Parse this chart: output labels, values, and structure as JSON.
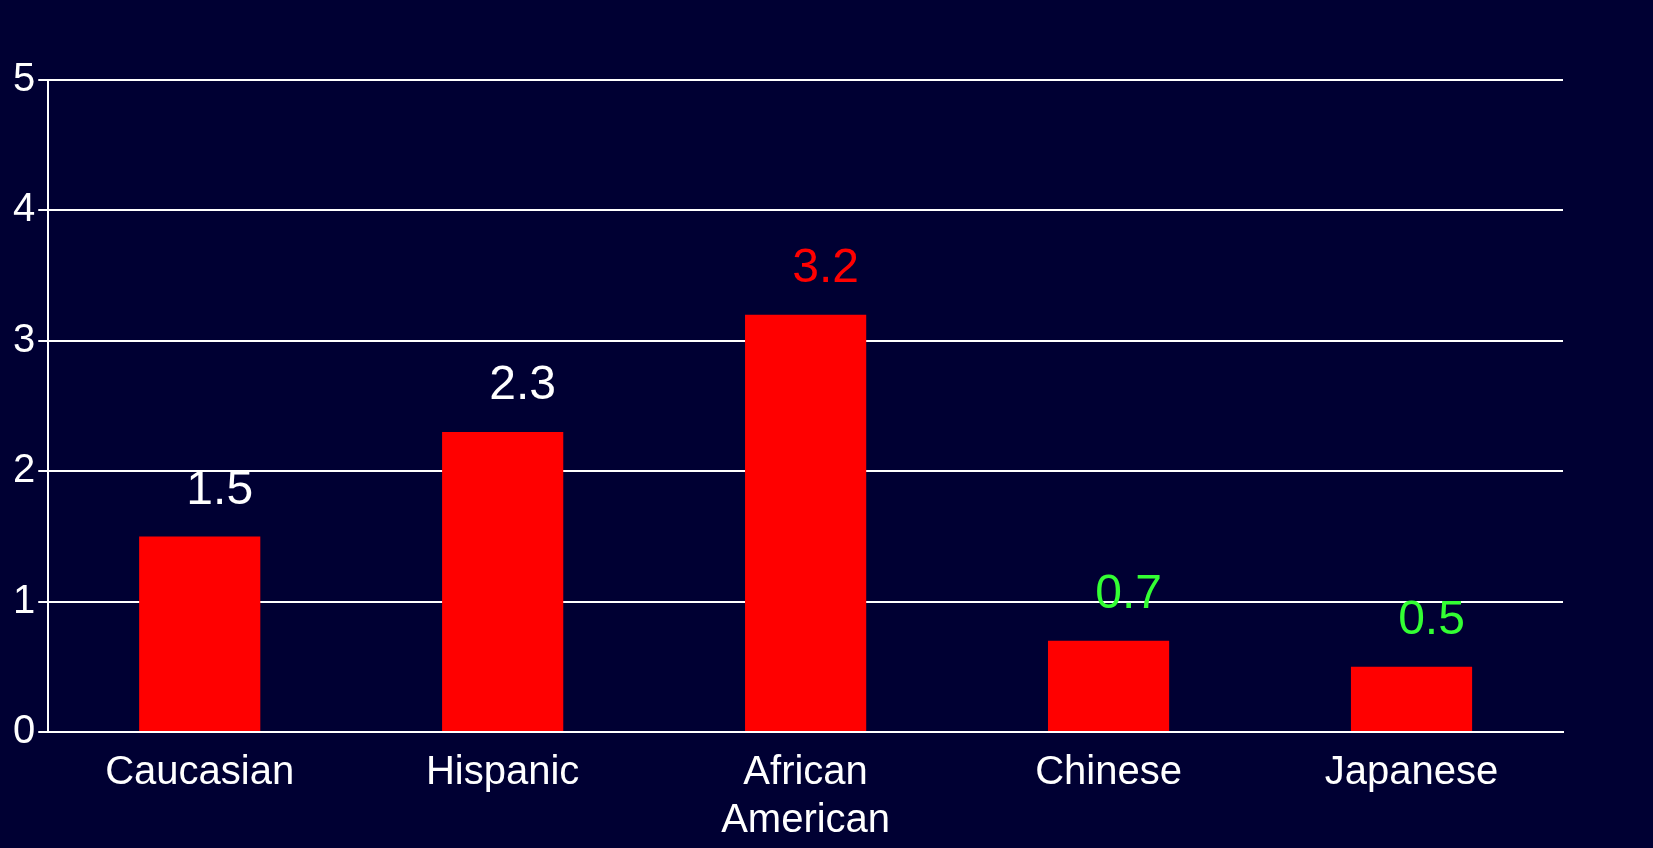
{
  "chart_data": {
    "type": "bar",
    "categories": [
      "Caucasian",
      "Hispanic",
      "African American",
      "Chinese",
      "Japanese"
    ],
    "values": [
      1.5,
      2.3,
      3.2,
      0.7,
      0.5
    ],
    "color": "#ff0000",
    "ylim": [
      0,
      5
    ],
    "yticks": [
      0,
      1,
      2,
      3,
      4,
      5
    ],
    "grid": "y",
    "data_labels": true
  }
}
